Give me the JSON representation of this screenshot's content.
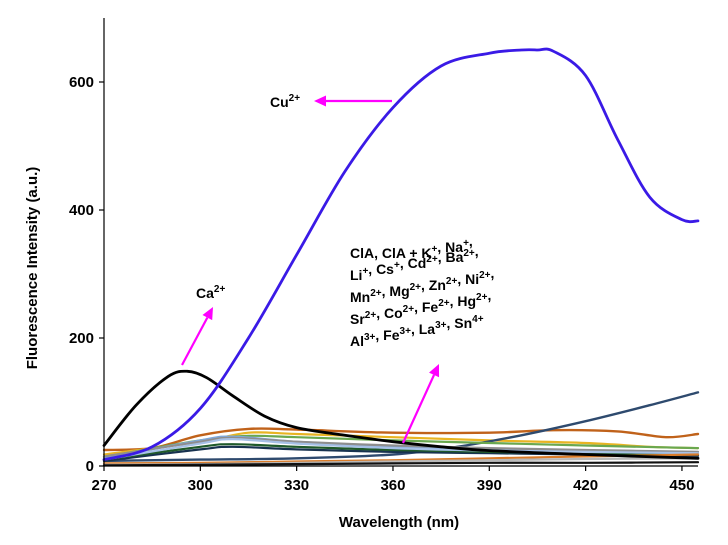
{
  "chart_data": {
    "type": "line",
    "title": "",
    "xlabel": "Wavelength (nm)",
    "ylabel": "Fluorescence Intensity (a.u.)",
    "xlim": [
      270,
      455
    ],
    "ylim": [
      0,
      700
    ],
    "x_ticks": [
      270,
      300,
      330,
      360,
      390,
      420,
      450
    ],
    "y_ticks": [
      0,
      200,
      400,
      600
    ],
    "grid": false,
    "series": [
      {
        "name": "Cu2+",
        "color": "#3a1ae6",
        "width": 2.8,
        "x": [
          270,
          285,
          300,
          315,
          330,
          345,
          360,
          375,
          390,
          400,
          405,
          410,
          420,
          430,
          440,
          450,
          455
        ],
        "y": [
          10,
          30,
          90,
          200,
          330,
          460,
          560,
          625,
          645,
          650,
          650,
          648,
          610,
          510,
          420,
          385,
          383
        ]
      },
      {
        "name": "Ca2+",
        "color": "#000000",
        "width": 2.8,
        "x": [
          270,
          280,
          290,
          296,
          302,
          310,
          320,
          330,
          345,
          360,
          375,
          390,
          420,
          455
        ],
        "y": [
          32,
          95,
          140,
          148,
          138,
          110,
          78,
          60,
          48,
          38,
          30,
          24,
          18,
          12
        ]
      },
      {
        "color": "#c0621a",
        "width": 2.4,
        "x": [
          270,
          285,
          300,
          315,
          330,
          360,
          390,
          410,
          430,
          445,
          455
        ],
        "y": [
          25,
          28,
          48,
          58,
          57,
          52,
          52,
          56,
          54,
          45,
          50
        ]
      },
      {
        "color": "#e8b422",
        "width": 2.2,
        "x": [
          270,
          300,
          315,
          330,
          360,
          390,
          420,
          440,
          455
        ],
        "y": [
          18,
          38,
          52,
          50,
          45,
          40,
          36,
          30,
          28
        ]
      },
      {
        "color": "#2e4a6e",
        "width": 2.4,
        "x": [
          270,
          300,
          330,
          360,
          380,
          400,
          420,
          440,
          455
        ],
        "y": [
          8,
          10,
          12,
          18,
          30,
          48,
          70,
          95,
          115
        ]
      },
      {
        "color": "#6aa84f",
        "width": 2.2,
        "x": [
          270,
          300,
          315,
          330,
          360,
          390,
          420,
          455
        ],
        "y": [
          14,
          40,
          47,
          45,
          40,
          36,
          32,
          28
        ]
      },
      {
        "color": "#7fa7d9",
        "width": 2.2,
        "x": [
          270,
          300,
          310,
          330,
          360,
          390,
          420,
          455
        ],
        "y": [
          12,
          40,
          46,
          38,
          30,
          25,
          22,
          20
        ]
      },
      {
        "color": "#8e8e8e",
        "width": 2.2,
        "x": [
          270,
          300,
          310,
          330,
          360,
          390,
          420,
          455
        ],
        "y": [
          15,
          38,
          44,
          38,
          32,
          28,
          25,
          22
        ]
      },
      {
        "color": "#17324f",
        "width": 2.2,
        "x": [
          270,
          300,
          310,
          330,
          360,
          390,
          420,
          455
        ],
        "y": [
          8,
          26,
          30,
          26,
          22,
          20,
          18,
          16
        ]
      },
      {
        "color": "#1f5a2a",
        "width": 2.2,
        "x": [
          270,
          300,
          310,
          330,
          360,
          390,
          420,
          455
        ],
        "y": [
          10,
          30,
          34,
          30,
          25,
          22,
          20,
          18
        ]
      },
      {
        "color": "#a6c0e6",
        "width": 2.2,
        "x": [
          270,
          300,
          310,
          330,
          360,
          390,
          420,
          455
        ],
        "y": [
          10,
          35,
          42,
          35,
          28,
          24,
          22,
          20
        ]
      },
      {
        "color": "#d97b28",
        "width": 2.2,
        "x": [
          270,
          300,
          330,
          360,
          390,
          420,
          455
        ],
        "y": [
          4,
          5,
          7,
          9,
          12,
          15,
          18
        ]
      },
      {
        "color": "#b8b8b8",
        "width": 2.2,
        "x": [
          270,
          300,
          330,
          360,
          390,
          420,
          455
        ],
        "y": [
          2,
          3,
          5,
          7,
          9,
          11,
          12
        ]
      },
      {
        "color": "#111111",
        "width": 2.2,
        "x": [
          270,
          300,
          330,
          360,
          390,
          420,
          455
        ],
        "y": [
          1,
          2,
          3,
          4,
          5,
          5,
          6
        ]
      }
    ],
    "annotations": [
      {
        "text": "Cu",
        "sup": "2+"
      },
      {
        "text": "Ca",
        "sup": "2+"
      },
      {
        "lines": [
          [
            [
              "ClA,  ClA  + K",
              "+"
            ],
            [
              ",  Na",
              "+"
            ],
            [
              ",",
              ""
            ]
          ],
          [
            [
              "Li",
              "+"
            ],
            [
              ",  Cs",
              "+"
            ],
            [
              ",  Cd",
              "2+"
            ],
            [
              ",  Ba",
              "2+"
            ],
            [
              ",",
              ""
            ]
          ],
          [
            [
              "Mn",
              "2+"
            ],
            [
              ", Mg",
              "2+"
            ],
            [
              ", Zn",
              "2+"
            ],
            [
              ", Ni",
              "2+"
            ],
            [
              ",",
              ""
            ]
          ],
          [
            [
              "Sr",
              "2+"
            ],
            [
              ",  Co",
              "2+"
            ],
            [
              ",  Fe",
              "2+"
            ],
            [
              ",  Hg",
              "2+"
            ],
            [
              ",",
              ""
            ]
          ],
          [
            [
              "Al",
              "3+"
            ],
            [
              ", Fe",
              "3+"
            ],
            [
              ", La",
              "3+"
            ],
            [
              ", Sn",
              "4+"
            ]
          ]
        ]
      }
    ],
    "arrow_color": "#ff00ff"
  }
}
